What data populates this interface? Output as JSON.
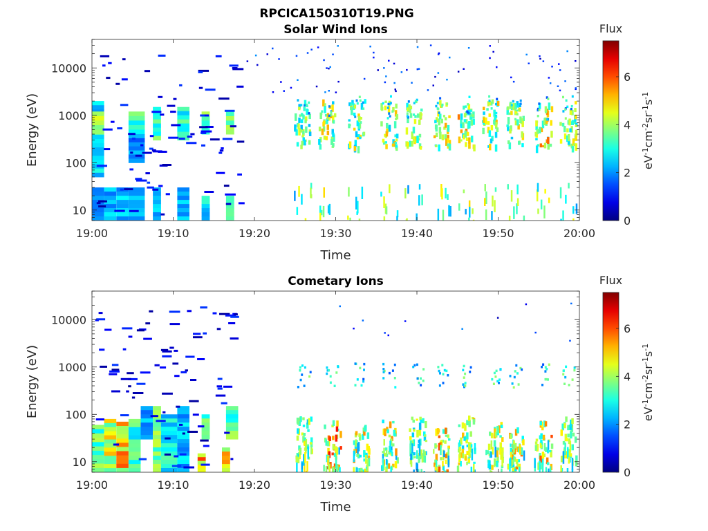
{
  "figure": {
    "title": "RPCICA150310T19.PNG"
  },
  "chart_data": [
    {
      "type": "heatmap",
      "title": "Solar Wind Ions",
      "xlabel": "Time",
      "ylabel": "Energy (eV)",
      "x_ticks": [
        "19:00",
        "19:10",
        "19:20",
        "19:30",
        "19:40",
        "19:50",
        "20:00"
      ],
      "x_range": [
        "19:00",
        "20:00"
      ],
      "y_ticks": [
        "10",
        "100",
        "1000",
        "10000"
      ],
      "y_scale": "log",
      "y_range": [
        6,
        40000
      ],
      "colorbar": {
        "title": "Flux",
        "unit_label": "eV-1cm-2sr-1s-1",
        "ticks": [
          "0",
          "2",
          "4",
          "6"
        ],
        "range": [
          0,
          7.5
        ],
        "colormap": "jet"
      },
      "blocks": [
        {
          "t0": 0.0,
          "t1": 1.5,
          "e0": 50,
          "e1": 2000,
          "v": 2.6
        },
        {
          "t0": 0.0,
          "t1": 1.5,
          "e0": 400,
          "e1": 1200,
          "v": 3.8
        },
        {
          "t0": 0.0,
          "t1": 1.5,
          "e0": 6,
          "e1": 30,
          "v": 2.0
        },
        {
          "t0": 1.5,
          "t1": 3.0,
          "e0": 6,
          "e1": 30,
          "v": 2.2
        },
        {
          "t0": 3.0,
          "t1": 4.5,
          "e0": 6,
          "e1": 30,
          "v": 2.4
        },
        {
          "t0": 4.5,
          "t1": 6.5,
          "e0": 400,
          "e1": 1200,
          "v": 3.5
        },
        {
          "t0": 4.5,
          "t1": 6.5,
          "e0": 100,
          "e1": 400,
          "v": 2.0
        },
        {
          "t0": 4.5,
          "t1": 6.5,
          "e0": 6,
          "e1": 30,
          "v": 2.1
        },
        {
          "t0": 7.5,
          "t1": 8.5,
          "e0": 300,
          "e1": 1500,
          "v": 3.2
        },
        {
          "t0": 7.5,
          "t1": 8.5,
          "e0": 6,
          "e1": 30,
          "v": 2.4
        },
        {
          "t0": 10.5,
          "t1": 12.0,
          "e0": 300,
          "e1": 1500,
          "v": 3.0
        },
        {
          "t0": 10.5,
          "t1": 12.0,
          "e0": 6,
          "e1": 30,
          "v": 2.2
        },
        {
          "t0": 13.5,
          "t1": 14.5,
          "e0": 400,
          "e1": 1200,
          "v": 3.8
        },
        {
          "t0": 13.5,
          "t1": 14.5,
          "e0": 6,
          "e1": 20,
          "v": 2.6
        },
        {
          "t0": 16.5,
          "t1": 17.5,
          "e0": 400,
          "e1": 1200,
          "v": 3.5
        },
        {
          "t0": 16.5,
          "t1": 17.5,
          "e0": 6,
          "e1": 20,
          "v": 3.0
        }
      ],
      "bursts": [
        {
          "t": 25.8,
          "e": 700,
          "v": 4.5
        },
        {
          "t": 28.8,
          "e": 700,
          "v": 4.8
        },
        {
          "t": 32.5,
          "e": 700,
          "v": 4.6
        },
        {
          "t": 36.5,
          "e": 700,
          "v": 4.8
        },
        {
          "t": 39.5,
          "e": 700,
          "v": 5.0
        },
        {
          "t": 43.0,
          "e": 700,
          "v": 5.0
        },
        {
          "t": 46.0,
          "e": 700,
          "v": 5.2
        },
        {
          "t": 49.0,
          "e": 700,
          "v": 4.9
        },
        {
          "t": 52.0,
          "e": 700,
          "v": 4.7
        },
        {
          "t": 55.5,
          "e": 700,
          "v": 5.3
        },
        {
          "t": 58.5,
          "e": 700,
          "v": 4.5
        }
      ]
    },
    {
      "type": "heatmap",
      "title": "Cometary Ions",
      "xlabel": "Time",
      "ylabel": "Energy (eV)",
      "x_ticks": [
        "19:00",
        "19:10",
        "19:20",
        "19:30",
        "19:40",
        "19:50",
        "20:00"
      ],
      "x_range": [
        "19:00",
        "20:00"
      ],
      "y_ticks": [
        "10",
        "100",
        "1000",
        "10000"
      ],
      "y_scale": "log",
      "y_range": [
        6,
        40000
      ],
      "colorbar": {
        "title": "Flux",
        "unit_label": "eV-1cm-2sr-1s-1",
        "ticks": [
          "0",
          "2",
          "4",
          "6"
        ],
        "range": [
          0,
          7.5
        ],
        "colormap": "jet"
      },
      "blocks": [
        {
          "t0": 0.0,
          "t1": 1.5,
          "e0": 6,
          "e1": 60,
          "v": 3.6
        },
        {
          "t0": 1.5,
          "t1": 3.0,
          "e0": 6,
          "e1": 80,
          "v": 4.2
        },
        {
          "t0": 3.0,
          "t1": 4.5,
          "e0": 6,
          "e1": 70,
          "v": 4.8
        },
        {
          "t0": 4.5,
          "t1": 6.0,
          "e0": 6,
          "e1": 80,
          "v": 3.2
        },
        {
          "t0": 6.0,
          "t1": 7.5,
          "e0": 30,
          "e1": 150,
          "v": 2.2
        },
        {
          "t0": 7.5,
          "t1": 8.5,
          "e0": 6,
          "e1": 150,
          "v": 3.5
        },
        {
          "t0": 8.5,
          "t1": 10.5,
          "e0": 6,
          "e1": 100,
          "v": 2.8
        },
        {
          "t0": 10.5,
          "t1": 12.0,
          "e0": 6,
          "e1": 150,
          "v": 2.3
        },
        {
          "t0": 13.0,
          "t1": 14.0,
          "e0": 6,
          "e1": 15,
          "v": 5.0
        },
        {
          "t0": 13.5,
          "t1": 14.5,
          "e0": 30,
          "e1": 100,
          "v": 3.5
        },
        {
          "t0": 16.0,
          "t1": 17.0,
          "e0": 6,
          "e1": 20,
          "v": 4.8
        },
        {
          "t0": 16.5,
          "t1": 18.0,
          "e0": 30,
          "e1": 150,
          "v": 3.5
        }
      ],
      "bursts": [
        {
          "t": 26.0,
          "e": 30,
          "v": 4.5
        },
        {
          "t": 29.5,
          "e": 25,
          "v": 6.0
        },
        {
          "t": 33.0,
          "e": 20,
          "v": 5.0
        },
        {
          "t": 36.5,
          "e": 25,
          "v": 5.2
        },
        {
          "t": 40.0,
          "e": 30,
          "v": 4.5
        },
        {
          "t": 43.0,
          "e": 20,
          "v": 5.5
        },
        {
          "t": 46.0,
          "e": 30,
          "v": 5.0
        },
        {
          "t": 49.5,
          "e": 25,
          "v": 4.8
        },
        {
          "t": 52.0,
          "e": 20,
          "v": 5.2
        },
        {
          "t": 55.5,
          "e": 25,
          "v": 5.5
        },
        {
          "t": 58.5,
          "e": 30,
          "v": 4.8
        }
      ]
    }
  ]
}
